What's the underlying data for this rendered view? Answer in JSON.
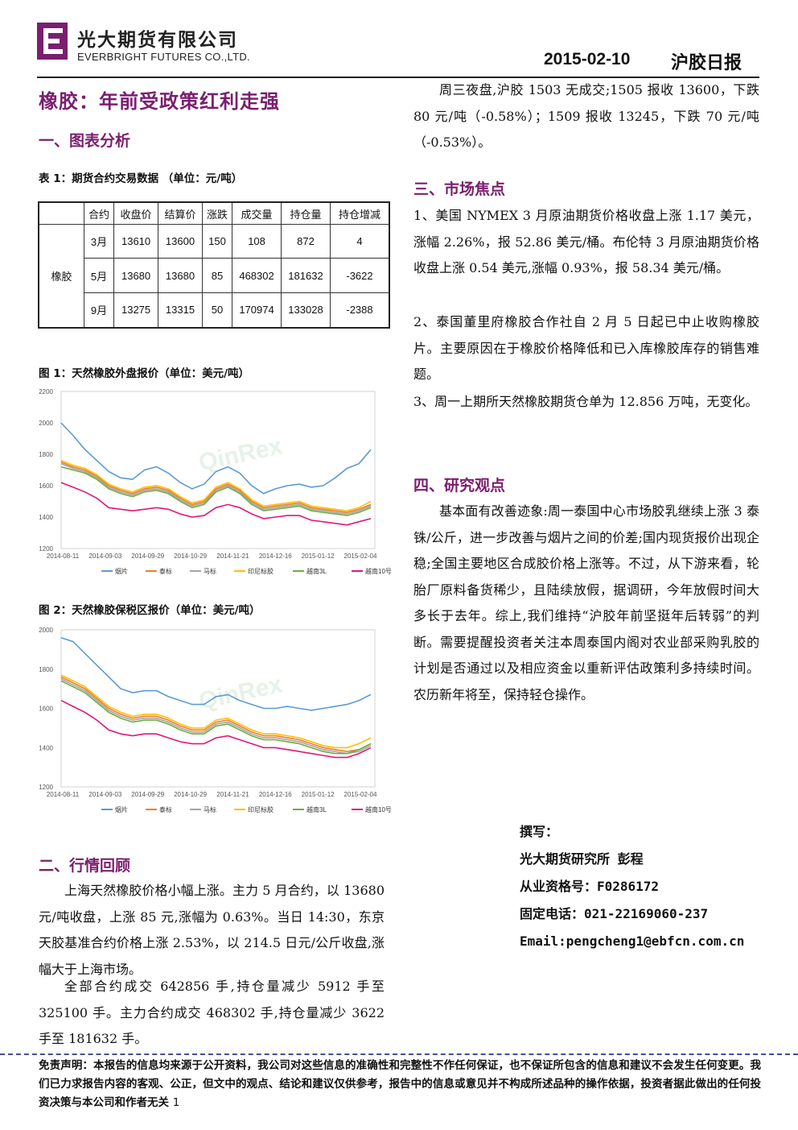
{
  "header": {
    "company_cn": "光大期货有限公司",
    "company_en": "EVERBRIGHT FUTURES CO.,LTD.",
    "date": "2015-02-10",
    "report_name": "沪胶日报",
    "logo_color": "#7a1f6e"
  },
  "main_title": "橡胶：年前受政策红利走强",
  "section1": {
    "title": "一、图表分析",
    "table_caption": "表 1：期货合约交易数据 （单位：元/吨）",
    "table": {
      "headers": [
        "合约",
        "收盘价",
        "结算价",
        "涨跌",
        "成交量",
        "持仓量",
        "持仓增减"
      ],
      "group_label": "橡胶",
      "rows": [
        [
          "3月",
          "13610",
          "13600",
          "150",
          "108",
          "872",
          "4"
        ],
        [
          "5月",
          "13680",
          "13680",
          "85",
          "468302",
          "181632",
          "-3622"
        ],
        [
          "9月",
          "13275",
          "13315",
          "50",
          "170974",
          "133028",
          "-2388"
        ]
      ]
    },
    "fig1_caption": "图 1：天然橡胶外盘报价（单位：美元/吨）",
    "fig2_caption": "图 2：天然橡胶保税区报价（单位：美元/吨）"
  },
  "chart_data": [
    {
      "type": "line",
      "y_ticks": [
        "2200",
        "2000",
        "1800",
        "1600",
        "1400",
        "1200"
      ],
      "ylim": [
        1200,
        2200
      ],
      "x_ticks": [
        "2014-08-11",
        "2014-09-03",
        "2014-09-29",
        "2014-10-29",
        "2014-11-21",
        "2014-12-16",
        "2015-01-12",
        "2015-02-04"
      ],
      "watermark": "QinRex",
      "legend_position": "bottom",
      "series": [
        {
          "name": "烟片",
          "color": "#5b9bd5",
          "values": [
            2000,
            1920,
            1830,
            1760,
            1690,
            1650,
            1640,
            1700,
            1720,
            1680,
            1620,
            1580,
            1610,
            1690,
            1720,
            1680,
            1600,
            1550,
            1580,
            1600,
            1610,
            1590,
            1600,
            1650,
            1710,
            1740,
            1830
          ]
        },
        {
          "name": "泰标",
          "color": "#ed7d31",
          "values": [
            1750,
            1720,
            1700,
            1660,
            1600,
            1570,
            1550,
            1580,
            1590,
            1570,
            1520,
            1480,
            1500,
            1580,
            1610,
            1570,
            1500,
            1460,
            1470,
            1480,
            1490,
            1460,
            1450,
            1440,
            1430,
            1450,
            1480
          ]
        },
        {
          "name": "马标",
          "color": "#a5a5a5",
          "values": [
            1740,
            1710,
            1690,
            1650,
            1590,
            1560,
            1540,
            1570,
            1580,
            1560,
            1510,
            1470,
            1490,
            1570,
            1600,
            1560,
            1490,
            1450,
            1460,
            1470,
            1480,
            1450,
            1440,
            1430,
            1420,
            1440,
            1470
          ]
        },
        {
          "name": "印尼标胶",
          "color": "#ffc000",
          "values": [
            1760,
            1730,
            1710,
            1670,
            1610,
            1580,
            1560,
            1590,
            1600,
            1580,
            1530,
            1490,
            1510,
            1590,
            1620,
            1580,
            1510,
            1470,
            1480,
            1490,
            1500,
            1470,
            1460,
            1450,
            1440,
            1460,
            1500
          ]
        },
        {
          "name": "越南3L",
          "color": "#70ad47",
          "values": [
            1720,
            1700,
            1680,
            1640,
            1580,
            1550,
            1530,
            1560,
            1570,
            1550,
            1500,
            1460,
            1480,
            1560,
            1590,
            1550,
            1480,
            1440,
            1450,
            1460,
            1470,
            1440,
            1430,
            1420,
            1410,
            1430,
            1460
          ]
        },
        {
          "name": "越南10号",
          "color": "#e0187a",
          "values": [
            1620,
            1590,
            1560,
            1520,
            1460,
            1450,
            1440,
            1450,
            1460,
            1450,
            1420,
            1400,
            1410,
            1460,
            1480,
            1460,
            1420,
            1390,
            1400,
            1410,
            1410,
            1380,
            1370,
            1360,
            1350,
            1370,
            1390
          ]
        }
      ]
    },
    {
      "type": "line",
      "y_ticks": [
        "2000",
        "1800",
        "1600",
        "1400",
        "1200"
      ],
      "ylim": [
        1200,
        2000
      ],
      "x_ticks": [
        "2014-08-11",
        "2014-09-03",
        "2014-09-29",
        "2014-10-29",
        "2014-11-21",
        "2014-12-16",
        "2015-01-12",
        "2015-02-04"
      ],
      "watermark": "QinRex",
      "legend_position": "bottom",
      "series": [
        {
          "name": "烟片",
          "color": "#5b9bd5",
          "values": [
            1960,
            1940,
            1880,
            1820,
            1760,
            1700,
            1680,
            1690,
            1690,
            1660,
            1640,
            1620,
            1620,
            1660,
            1670,
            1640,
            1620,
            1600,
            1600,
            1610,
            1600,
            1590,
            1600,
            1610,
            1620,
            1640,
            1670
          ]
        },
        {
          "name": "泰标",
          "color": "#ed7d31",
          "values": [
            1760,
            1730,
            1700,
            1650,
            1600,
            1570,
            1550,
            1560,
            1560,
            1540,
            1510,
            1490,
            1490,
            1530,
            1540,
            1510,
            1480,
            1460,
            1460,
            1450,
            1440,
            1420,
            1400,
            1390,
            1380,
            1390,
            1420
          ]
        },
        {
          "name": "马标",
          "color": "#a5a5a5",
          "values": [
            1750,
            1720,
            1690,
            1640,
            1590,
            1560,
            1540,
            1550,
            1550,
            1530,
            1500,
            1480,
            1480,
            1520,
            1530,
            1500,
            1470,
            1450,
            1450,
            1440,
            1430,
            1410,
            1390,
            1380,
            1370,
            1380,
            1410
          ]
        },
        {
          "name": "印尼标胶",
          "color": "#ffc000",
          "values": [
            1770,
            1740,
            1710,
            1660,
            1610,
            1580,
            1560,
            1570,
            1570,
            1550,
            1520,
            1500,
            1500,
            1540,
            1550,
            1520,
            1490,
            1470,
            1470,
            1460,
            1450,
            1430,
            1410,
            1400,
            1400,
            1420,
            1450
          ]
        },
        {
          "name": "越南3L",
          "color": "#70ad47",
          "values": [
            1740,
            1710,
            1680,
            1630,
            1580,
            1550,
            1530,
            1540,
            1540,
            1520,
            1490,
            1470,
            1470,
            1510,
            1520,
            1490,
            1460,
            1440,
            1440,
            1430,
            1420,
            1400,
            1380,
            1370,
            1370,
            1390,
            1420
          ]
        },
        {
          "name": "越南10号",
          "color": "#e0187a",
          "values": [
            1640,
            1610,
            1580,
            1540,
            1490,
            1470,
            1460,
            1470,
            1470,
            1450,
            1430,
            1420,
            1420,
            1450,
            1460,
            1440,
            1420,
            1400,
            1400,
            1390,
            1380,
            1370,
            1360,
            1350,
            1350,
            1370,
            1400
          ]
        }
      ]
    }
  ],
  "section2": {
    "title": "二、行情回顾",
    "p1": "上海天然橡胶价格小幅上涨。主力 5 月合约，以 13680 元/吨收盘，上涨 85 元,涨幅为 0.63%。当日 14:30，东京天胶基准合约价格上涨 2.53%，以 214.5 日元/公斤收盘,涨幅大于上海市场。",
    "p2": "全部合约成交 642856 手,持仓量减少 5912 手至 325100 手。主力合约成交 468302 手,持仓量减少 3622 手至 181632 手。"
  },
  "right_top": {
    "p": "周三夜盘,沪胶 1503 无成交;1505 报收 13600，下跌 80 元/吨（-0.58%）；1509 报收 13245，下跌 70 元/吨（-0.53%）。"
  },
  "section3": {
    "title": "三、市场焦点",
    "items": [
      "1、美国 NYMEX 3 月原油期货价格收盘上涨 1.17 美元，涨幅 2.26%，报 52.86 美元/桶。布伦特 3 月原油期货价格收盘上涨 0.54 美元,涨幅 0.93%，报 58.34 美元/桶。",
      "2、泰国董里府橡胶合作社自 2 月 5 日起已中止收购橡胶片。主要原因在于橡胶价格降低和已入库橡胶库存的销售难题。",
      "3、周一上期所天然橡胶期货仓单为 12.856 万吨，无变化。"
    ]
  },
  "section4": {
    "title": "四、研究观点",
    "p": "基本面有改善迹象:周一泰国中心市场胶乳继续上涨 3 泰铢/公斤，进一步改善与烟片之间的价差;国内现货报价出现企稳;全国主要地区合成胶价格上涨等。不过，从下游来看，轮胎厂原料备货稀少，且陆续放假，据调研，今年放假时间大多长于去年。综上,我们维持“沪胶年前坚挺年后转弱”的判断。需要提醒投资者关注本周泰国内阁对农业部采购乳胶的计划是否通过以及相应资金以重新评估政策利多持续时间。农历新年将至，保持轻仓操作。"
  },
  "author": {
    "label": "撰写：",
    "name": "光大期货研究所 彭程",
    "license": "从业资格号：F0286172",
    "phone": "固定电话：021-22169060-237",
    "email": "Email:pengcheng1@ebfcn.com.cn"
  },
  "disclaimer": {
    "text": "免责声明：本报告的信息均来源于公开资料，我公司对这些信息的准确性和完整性不作任何保证，也不保证所包含的信息和建议不会发生任何变更。我们已力求报告内容的客观、公正，但文中的观点、结论和建议仅供参考，报告中的信息或意见并不构成所述品种的操作依据，投资者据此做出的任何投资决策与本公司和作者无关",
    "page": "1"
  }
}
